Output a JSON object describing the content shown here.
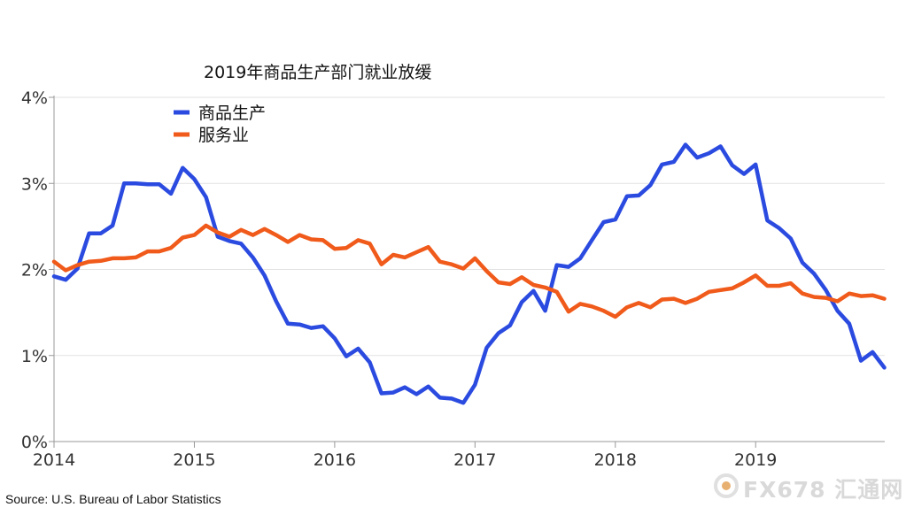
{
  "chart_data": {
    "type": "line",
    "title": "2019年商品生产部门就业放缓",
    "xlabel": "",
    "ylabel": "",
    "xlim": [
      2014,
      2019.92
    ],
    "ylim": [
      0,
      4
    ],
    "x_ticks": [
      {
        "value": 2014,
        "label": "2014"
      },
      {
        "value": 2015,
        "label": "2015"
      },
      {
        "value": 2016,
        "label": "2016"
      },
      {
        "value": 2017,
        "label": "2017"
      },
      {
        "value": 2018,
        "label": "2018"
      },
      {
        "value": 2019,
        "label": "2019"
      }
    ],
    "y_ticks": [
      {
        "value": 0,
        "label": "0%"
      },
      {
        "value": 1,
        "label": "1%"
      },
      {
        "value": 2,
        "label": "2%"
      },
      {
        "value": 3,
        "label": "3%"
      },
      {
        "value": 4,
        "label": "4%"
      }
    ],
    "grid": "horizontal",
    "legend_position": "top-left",
    "series": [
      {
        "name": "商品生产",
        "color": "#2b4be0",
        "points": [
          [
            2014.0,
            1.92
          ],
          [
            2014.083,
            1.88
          ],
          [
            2014.167,
            2.01
          ],
          [
            2014.25,
            2.42
          ],
          [
            2014.333,
            2.42
          ],
          [
            2014.417,
            2.51
          ],
          [
            2014.5,
            3.0
          ],
          [
            2014.583,
            3.0
          ],
          [
            2014.667,
            2.99
          ],
          [
            2014.75,
            2.99
          ],
          [
            2014.833,
            2.88
          ],
          [
            2014.917,
            3.18
          ],
          [
            2015.0,
            3.05
          ],
          [
            2015.083,
            2.84
          ],
          [
            2015.167,
            2.38
          ],
          [
            2015.25,
            2.33
          ],
          [
            2015.333,
            2.3
          ],
          [
            2015.417,
            2.14
          ],
          [
            2015.5,
            1.93
          ],
          [
            2015.583,
            1.63
          ],
          [
            2015.667,
            1.37
          ],
          [
            2015.75,
            1.36
          ],
          [
            2015.833,
            1.32
          ],
          [
            2015.917,
            1.34
          ],
          [
            2016.0,
            1.2
          ],
          [
            2016.083,
            0.99
          ],
          [
            2016.167,
            1.08
          ],
          [
            2016.25,
            0.92
          ],
          [
            2016.333,
            0.56
          ],
          [
            2016.417,
            0.57
          ],
          [
            2016.5,
            0.63
          ],
          [
            2016.583,
            0.55
          ],
          [
            2016.667,
            0.64
          ],
          [
            2016.75,
            0.51
          ],
          [
            2016.833,
            0.5
          ],
          [
            2016.917,
            0.45
          ],
          [
            2017.0,
            0.66
          ],
          [
            2017.083,
            1.09
          ],
          [
            2017.167,
            1.26
          ],
          [
            2017.25,
            1.35
          ],
          [
            2017.333,
            1.62
          ],
          [
            2017.417,
            1.75
          ],
          [
            2017.5,
            1.52
          ],
          [
            2017.583,
            2.05
          ],
          [
            2017.667,
            2.03
          ],
          [
            2017.75,
            2.13
          ],
          [
            2017.833,
            2.34
          ],
          [
            2017.917,
            2.55
          ],
          [
            2018.0,
            2.58
          ],
          [
            2018.083,
            2.85
          ],
          [
            2018.167,
            2.86
          ],
          [
            2018.25,
            2.98
          ],
          [
            2018.333,
            3.22
          ],
          [
            2018.417,
            3.25
          ],
          [
            2018.5,
            3.45
          ],
          [
            2018.583,
            3.3
          ],
          [
            2018.667,
            3.35
          ],
          [
            2018.75,
            3.43
          ],
          [
            2018.833,
            3.21
          ],
          [
            2018.917,
            3.11
          ],
          [
            2019.0,
            3.22
          ],
          [
            2019.083,
            2.57
          ],
          [
            2019.167,
            2.48
          ],
          [
            2019.25,
            2.36
          ],
          [
            2019.333,
            2.08
          ],
          [
            2019.417,
            1.95
          ],
          [
            2019.5,
            1.76
          ],
          [
            2019.583,
            1.52
          ],
          [
            2019.667,
            1.37
          ],
          [
            2019.75,
            0.94
          ],
          [
            2019.833,
            1.04
          ],
          [
            2019.917,
            0.86
          ]
        ]
      },
      {
        "name": "服务业",
        "color": "#f05a1a",
        "points": [
          [
            2014.0,
            2.09
          ],
          [
            2014.083,
            1.99
          ],
          [
            2014.167,
            2.05
          ],
          [
            2014.25,
            2.09
          ],
          [
            2014.333,
            2.1
          ],
          [
            2014.417,
            2.13
          ],
          [
            2014.5,
            2.13
          ],
          [
            2014.583,
            2.14
          ],
          [
            2014.667,
            2.21
          ],
          [
            2014.75,
            2.21
          ],
          [
            2014.833,
            2.25
          ],
          [
            2014.917,
            2.37
          ],
          [
            2015.0,
            2.4
          ],
          [
            2015.083,
            2.51
          ],
          [
            2015.167,
            2.43
          ],
          [
            2015.25,
            2.38
          ],
          [
            2015.333,
            2.46
          ],
          [
            2015.417,
            2.4
          ],
          [
            2015.5,
            2.47
          ],
          [
            2015.583,
            2.4
          ],
          [
            2015.667,
            2.32
          ],
          [
            2015.75,
            2.4
          ],
          [
            2015.833,
            2.35
          ],
          [
            2015.917,
            2.34
          ],
          [
            2016.0,
            2.24
          ],
          [
            2016.083,
            2.25
          ],
          [
            2016.167,
            2.34
          ],
          [
            2016.25,
            2.3
          ],
          [
            2016.333,
            2.06
          ],
          [
            2016.417,
            2.17
          ],
          [
            2016.5,
            2.14
          ],
          [
            2016.583,
            2.2
          ],
          [
            2016.667,
            2.26
          ],
          [
            2016.75,
            2.09
          ],
          [
            2016.833,
            2.06
          ],
          [
            2016.917,
            2.01
          ],
          [
            2017.0,
            2.13
          ],
          [
            2017.083,
            1.98
          ],
          [
            2017.167,
            1.85
          ],
          [
            2017.25,
            1.83
          ],
          [
            2017.333,
            1.91
          ],
          [
            2017.417,
            1.82
          ],
          [
            2017.5,
            1.79
          ],
          [
            2017.583,
            1.74
          ],
          [
            2017.667,
            1.51
          ],
          [
            2017.75,
            1.6
          ],
          [
            2017.833,
            1.57
          ],
          [
            2017.917,
            1.52
          ],
          [
            2018.0,
            1.45
          ],
          [
            2018.083,
            1.56
          ],
          [
            2018.167,
            1.61
          ],
          [
            2018.25,
            1.56
          ],
          [
            2018.333,
            1.65
          ],
          [
            2018.417,
            1.66
          ],
          [
            2018.5,
            1.61
          ],
          [
            2018.583,
            1.66
          ],
          [
            2018.667,
            1.74
          ],
          [
            2018.75,
            1.76
          ],
          [
            2018.833,
            1.78
          ],
          [
            2018.917,
            1.85
          ],
          [
            2019.0,
            1.93
          ],
          [
            2019.083,
            1.81
          ],
          [
            2019.167,
            1.81
          ],
          [
            2019.25,
            1.84
          ],
          [
            2019.333,
            1.72
          ],
          [
            2019.417,
            1.68
          ],
          [
            2019.5,
            1.67
          ],
          [
            2019.583,
            1.63
          ],
          [
            2019.667,
            1.72
          ],
          [
            2019.75,
            1.69
          ],
          [
            2019.833,
            1.7
          ],
          [
            2019.917,
            1.66
          ]
        ]
      }
    ]
  },
  "source": "Source: U.S. Bureau of Labor Statistics",
  "watermark": {
    "text": "FX678 汇通网",
    "color": "#d9d9d9",
    "icon": "fx678-logo-icon"
  }
}
